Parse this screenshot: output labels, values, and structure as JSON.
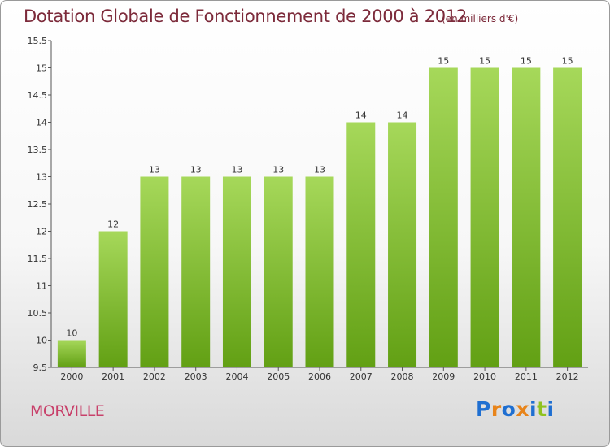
{
  "header": {
    "title": "Dotation Globale de Fonctionnement de 2000 à 2012",
    "subtitle": "(en milliers d'€)"
  },
  "footer": {
    "commune": "MORVILLE",
    "logo_text": "Proxiti"
  },
  "colors": {
    "bar_light": "#a6d85a",
    "bar_dark": "#62a014",
    "title": "#7c2a3a",
    "commune": "#c8406a",
    "logo_letters": [
      "#1f6fd1",
      "#e8841a",
      "#1f6fd1",
      "#e8841a",
      "#1f6fd1",
      "#8fc21f",
      "#1f6fd1"
    ]
  },
  "chart_data": {
    "type": "bar",
    "title": "Dotation Globale de Fonctionnement de 2000 à 2012",
    "subtitle": "(en milliers d'€)",
    "xlabel": "",
    "ylabel": "",
    "categories": [
      "2000",
      "2001",
      "2002",
      "2003",
      "2004",
      "2005",
      "2006",
      "2007",
      "2008",
      "2009",
      "2010",
      "2011",
      "2012"
    ],
    "values": [
      10,
      12,
      13,
      13,
      13,
      13,
      13,
      14,
      14,
      15,
      15,
      15,
      15
    ],
    "data_labels": [
      "10",
      "12",
      "13",
      "13",
      "13",
      "13",
      "13",
      "14",
      "14",
      "15",
      "15",
      "15",
      "15"
    ],
    "ylim": [
      9.5,
      15.5
    ],
    "yticks": [
      9.5,
      10,
      10.5,
      11,
      11.5,
      12,
      12.5,
      13,
      13.5,
      14,
      14.5,
      15,
      15.5
    ],
    "ytick_labels": [
      "9.5",
      "10",
      "10.5",
      "11",
      "11.5",
      "12",
      "12.5",
      "13",
      "13.5",
      "14",
      "14.5",
      "15",
      "15.5"
    ],
    "grid": false,
    "legend": "none"
  }
}
